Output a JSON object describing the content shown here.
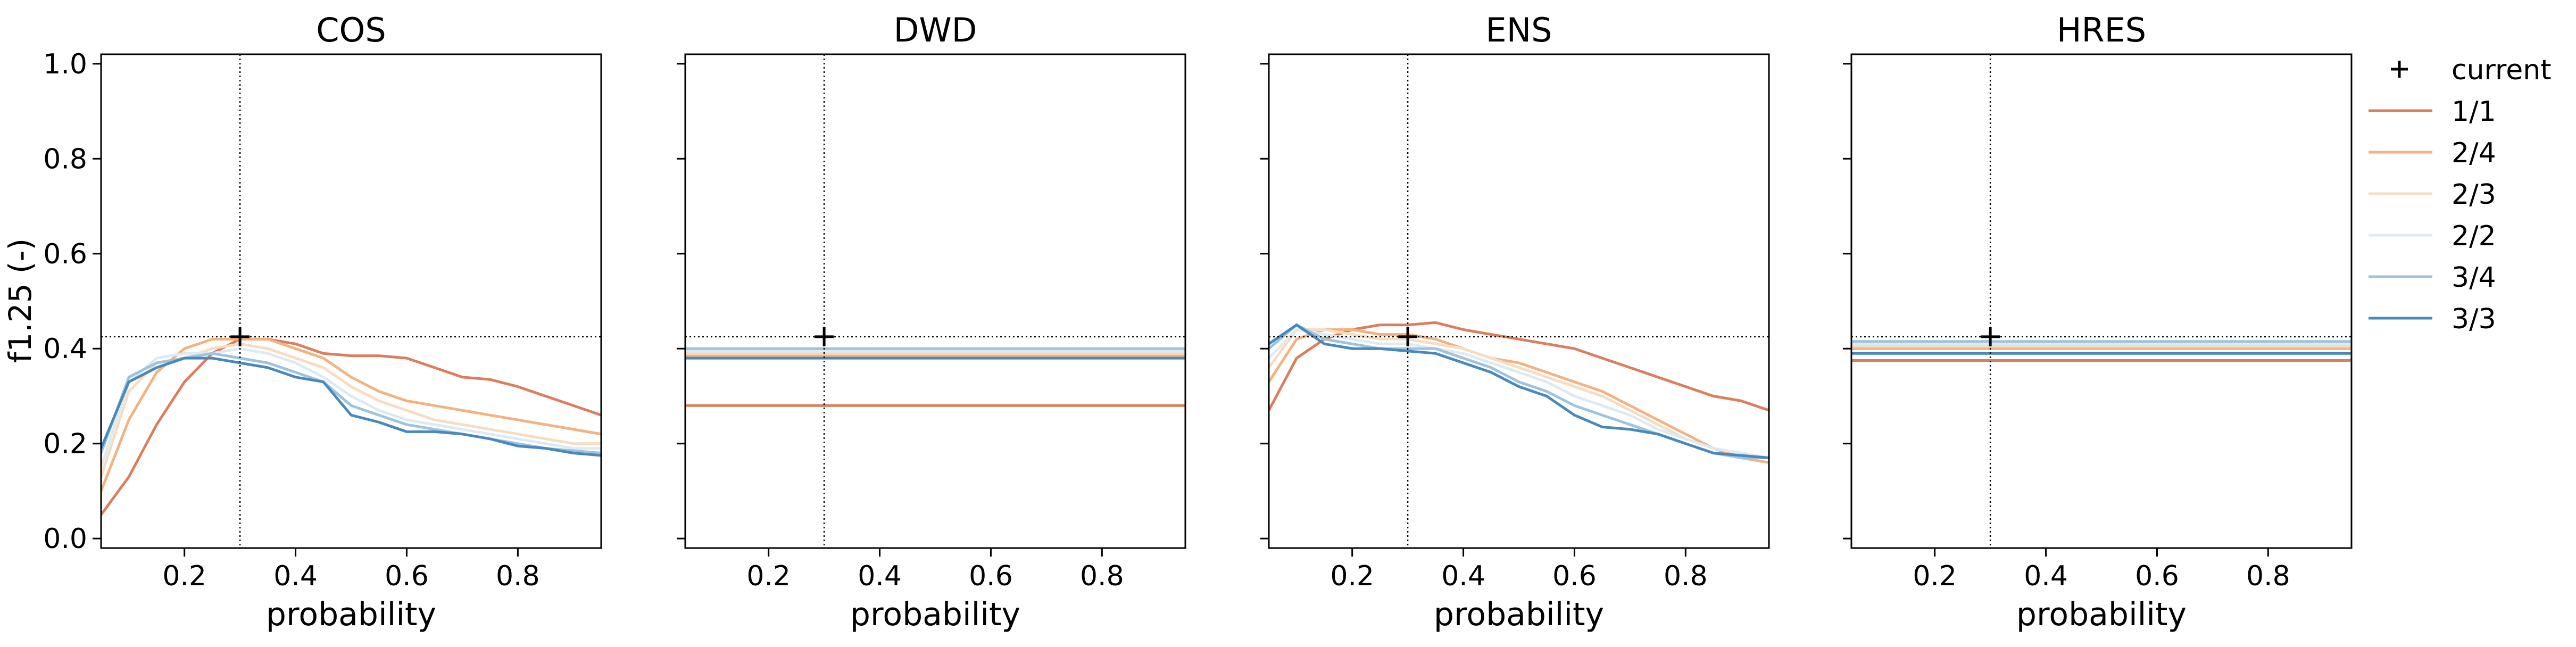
{
  "ylabel": "f1.25 (-)",
  "legend": {
    "placement": "right",
    "items": [
      {
        "label": "current",
        "marker": "plus",
        "color": "#000000"
      },
      {
        "label": "1/1",
        "color": "#dc7e5c"
      },
      {
        "label": "2/4",
        "color": "#f3b27f"
      },
      {
        "label": "2/3",
        "color": "#f6dcc2"
      },
      {
        "label": "2/2",
        "color": "#deeaf2"
      },
      {
        "label": "3/4",
        "color": "#9dc3de"
      },
      {
        "label": "3/3",
        "color": "#4988bd"
      }
    ]
  },
  "chart_data": [
    {
      "type": "line",
      "title": "COS",
      "xlabel": "probability",
      "ylabel": "f1.25 (-)",
      "xlim": [
        0.05,
        0.95
      ],
      "ylim": [
        -0.02,
        1.02
      ],
      "xticks": [
        "0.2",
        "0.4",
        "0.6",
        "0.8"
      ],
      "yticks": [
        "0.0",
        "0.2",
        "0.4",
        "0.6",
        "0.8",
        "1.0"
      ],
      "show_yticklabels": true,
      "current": {
        "x": 0.3,
        "y": 0.425
      },
      "x": [
        0.05,
        0.1,
        0.15,
        0.2,
        0.25,
        0.3,
        0.35,
        0.4,
        0.45,
        0.5,
        0.55,
        0.6,
        0.65,
        0.7,
        0.75,
        0.8,
        0.85,
        0.9,
        0.95
      ],
      "series": [
        {
          "name": "1/1",
          "color": "#dc7e5c",
          "values": [
            0.05,
            0.13,
            0.24,
            0.33,
            0.39,
            0.42,
            0.42,
            0.41,
            0.39,
            0.385,
            0.385,
            0.38,
            0.36,
            0.34,
            0.335,
            0.32,
            0.3,
            0.28,
            0.26
          ]
        },
        {
          "name": "2/4",
          "color": "#f3b27f",
          "values": [
            0.1,
            0.25,
            0.35,
            0.4,
            0.42,
            0.42,
            0.42,
            0.4,
            0.38,
            0.34,
            0.31,
            0.29,
            0.28,
            0.27,
            0.26,
            0.25,
            0.24,
            0.23,
            0.22
          ]
        },
        {
          "name": "2/3",
          "color": "#f6dcc2",
          "values": [
            0.13,
            0.31,
            0.37,
            0.38,
            0.4,
            0.41,
            0.4,
            0.38,
            0.36,
            0.32,
            0.29,
            0.27,
            0.25,
            0.24,
            0.23,
            0.22,
            0.21,
            0.2,
            0.2
          ]
        },
        {
          "name": "2/2",
          "color": "#deeaf2",
          "values": [
            0.15,
            0.33,
            0.38,
            0.39,
            0.39,
            0.4,
            0.39,
            0.37,
            0.34,
            0.3,
            0.27,
            0.25,
            0.24,
            0.23,
            0.22,
            0.21,
            0.2,
            0.19,
            0.19
          ]
        },
        {
          "name": "3/4",
          "color": "#9dc3de",
          "values": [
            0.18,
            0.34,
            0.37,
            0.38,
            0.39,
            0.38,
            0.37,
            0.35,
            0.33,
            0.28,
            0.26,
            0.24,
            0.23,
            0.22,
            0.21,
            0.2,
            0.19,
            0.185,
            0.18
          ]
        },
        {
          "name": "3/3",
          "color": "#4988bd",
          "values": [
            0.19,
            0.33,
            0.36,
            0.38,
            0.38,
            0.37,
            0.36,
            0.34,
            0.33,
            0.26,
            0.245,
            0.225,
            0.225,
            0.22,
            0.21,
            0.195,
            0.19,
            0.18,
            0.175
          ]
        }
      ]
    },
    {
      "type": "line",
      "title": "DWD",
      "xlabel": "probability",
      "ylabel": "",
      "xlim": [
        0.05,
        0.95
      ],
      "ylim": [
        -0.02,
        1.02
      ],
      "xticks": [
        "0.2",
        "0.4",
        "0.6",
        "0.8"
      ],
      "yticks": [
        "0.0",
        "0.2",
        "0.4",
        "0.6",
        "0.8",
        "1.0"
      ],
      "show_yticklabels": false,
      "current": {
        "x": 0.3,
        "y": 0.425
      },
      "x": [
        0.05,
        0.95
      ],
      "series": [
        {
          "name": "1/1",
          "color": "#dc7e5c",
          "values": [
            0.28,
            0.28
          ]
        },
        {
          "name": "2/4",
          "color": "#f3b27f",
          "values": [
            0.385,
            0.385
          ]
        },
        {
          "name": "2/3",
          "color": "#f6dcc2",
          "values": [
            0.39,
            0.39
          ]
        },
        {
          "name": "2/2",
          "color": "#deeaf2",
          "values": [
            0.395,
            0.395
          ]
        },
        {
          "name": "3/4",
          "color": "#9dc3de",
          "values": [
            0.4,
            0.4
          ]
        },
        {
          "name": "3/3",
          "color": "#4988bd",
          "values": [
            0.38,
            0.38
          ]
        }
      ]
    },
    {
      "type": "line",
      "title": "ENS",
      "xlabel": "probability",
      "ylabel": "",
      "xlim": [
        0.05,
        0.95
      ],
      "ylim": [
        -0.02,
        1.02
      ],
      "xticks": [
        "0.2",
        "0.4",
        "0.6",
        "0.8"
      ],
      "yticks": [
        "0.0",
        "0.2",
        "0.4",
        "0.6",
        "0.8",
        "1.0"
      ],
      "show_yticklabels": false,
      "current": {
        "x": 0.3,
        "y": 0.425
      },
      "x": [
        0.05,
        0.1,
        0.15,
        0.2,
        0.25,
        0.3,
        0.35,
        0.4,
        0.45,
        0.5,
        0.55,
        0.6,
        0.65,
        0.7,
        0.75,
        0.8,
        0.85,
        0.9,
        0.95
      ],
      "series": [
        {
          "name": "1/1",
          "color": "#dc7e5c",
          "values": [
            0.27,
            0.38,
            0.42,
            0.44,
            0.45,
            0.45,
            0.455,
            0.44,
            0.43,
            0.42,
            0.41,
            0.4,
            0.38,
            0.36,
            0.34,
            0.32,
            0.3,
            0.29,
            0.27
          ]
        },
        {
          "name": "2/4",
          "color": "#f3b27f",
          "values": [
            0.33,
            0.42,
            0.44,
            0.44,
            0.43,
            0.43,
            0.42,
            0.4,
            0.38,
            0.37,
            0.35,
            0.33,
            0.31,
            0.28,
            0.25,
            0.22,
            0.19,
            0.17,
            0.16
          ]
        },
        {
          "name": "2/3",
          "color": "#f6dcc2",
          "values": [
            0.36,
            0.44,
            0.44,
            0.43,
            0.42,
            0.42,
            0.41,
            0.4,
            0.38,
            0.36,
            0.34,
            0.32,
            0.3,
            0.27,
            0.24,
            0.21,
            0.19,
            0.18,
            0.17
          ]
        },
        {
          "name": "2/2",
          "color": "#deeaf2",
          "values": [
            0.38,
            0.44,
            0.43,
            0.42,
            0.41,
            0.41,
            0.4,
            0.39,
            0.37,
            0.35,
            0.33,
            0.3,
            0.28,
            0.26,
            0.23,
            0.21,
            0.19,
            0.18,
            0.17
          ]
        },
        {
          "name": "3/4",
          "color": "#9dc3de",
          "values": [
            0.4,
            0.45,
            0.42,
            0.41,
            0.4,
            0.4,
            0.4,
            0.38,
            0.36,
            0.33,
            0.31,
            0.28,
            0.26,
            0.24,
            0.22,
            0.2,
            0.18,
            0.17,
            0.17
          ]
        },
        {
          "name": "3/3",
          "color": "#4988bd",
          "values": [
            0.41,
            0.45,
            0.41,
            0.4,
            0.4,
            0.395,
            0.39,
            0.37,
            0.35,
            0.32,
            0.3,
            0.26,
            0.235,
            0.23,
            0.22,
            0.2,
            0.18,
            0.175,
            0.17
          ]
        }
      ]
    },
    {
      "type": "line",
      "title": "HRES",
      "xlabel": "probability",
      "ylabel": "",
      "xlim": [
        0.05,
        0.95
      ],
      "ylim": [
        -0.02,
        1.02
      ],
      "xticks": [
        "0.2",
        "0.4",
        "0.6",
        "0.8"
      ],
      "yticks": [
        "0.0",
        "0.2",
        "0.4",
        "0.6",
        "0.8",
        "1.0"
      ],
      "show_yticklabels": false,
      "current": {
        "x": 0.3,
        "y": 0.425
      },
      "x": [
        0.05,
        0.95
      ],
      "series": [
        {
          "name": "1/1",
          "color": "#dc7e5c",
          "values": [
            0.375,
            0.375
          ]
        },
        {
          "name": "2/4",
          "color": "#f3b27f",
          "values": [
            0.4,
            0.4
          ]
        },
        {
          "name": "2/3",
          "color": "#f6dcc2",
          "values": [
            0.405,
            0.405
          ]
        },
        {
          "name": "2/2",
          "color": "#deeaf2",
          "values": [
            0.41,
            0.41
          ]
        },
        {
          "name": "3/4",
          "color": "#9dc3de",
          "values": [
            0.415,
            0.415
          ]
        },
        {
          "name": "3/3",
          "color": "#4988bd",
          "values": [
            0.39,
            0.39
          ]
        }
      ]
    }
  ]
}
